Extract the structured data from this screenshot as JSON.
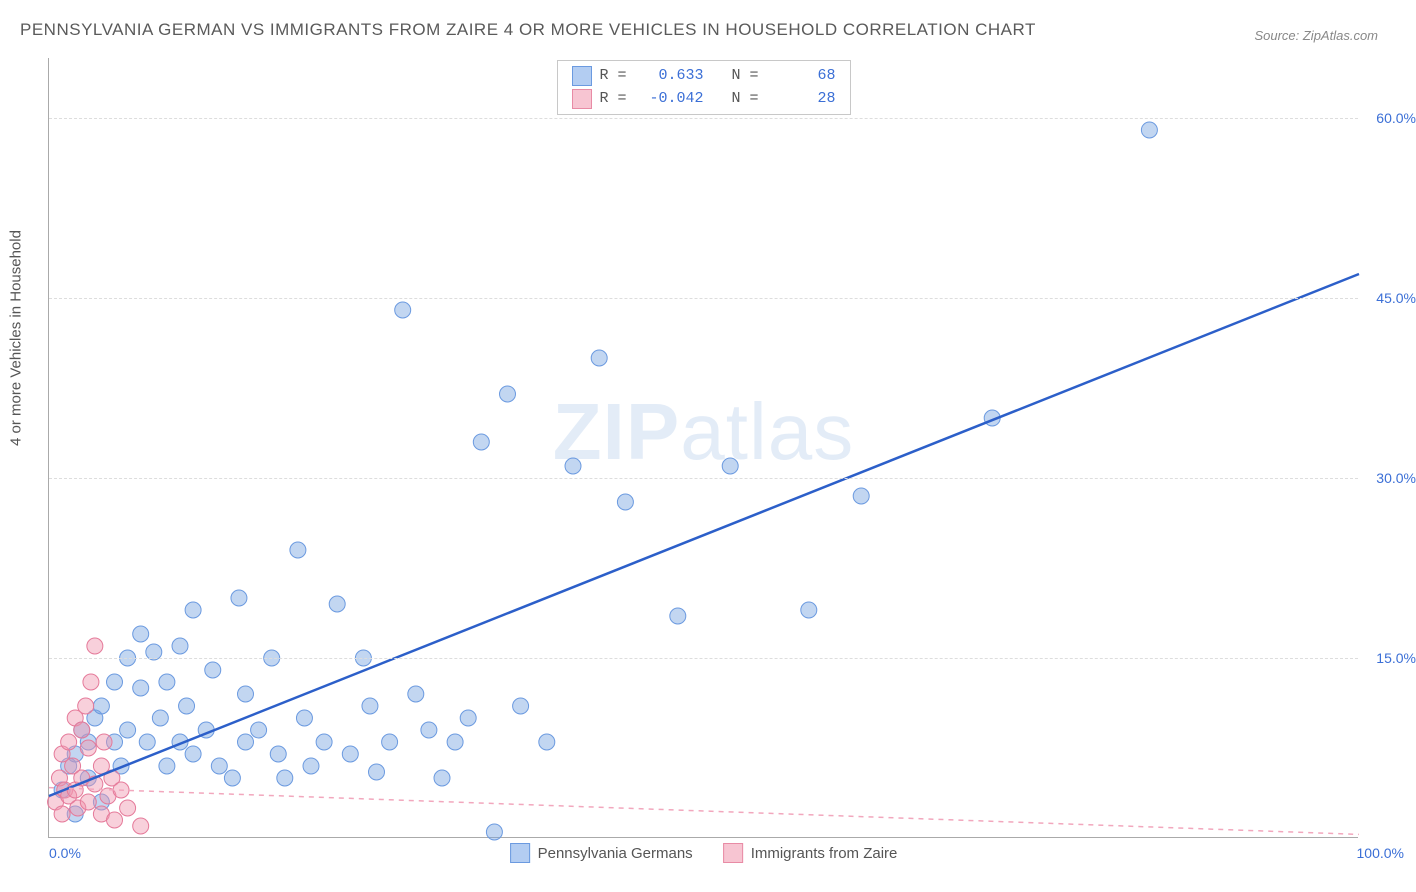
{
  "title": "PENNSYLVANIA GERMAN VS IMMIGRANTS FROM ZAIRE 4 OR MORE VEHICLES IN HOUSEHOLD CORRELATION CHART",
  "source": "Source: ZipAtlas.com",
  "watermark_zip": "ZIP",
  "watermark_atlas": "atlas",
  "ylabel": "4 or more Vehicles in Household",
  "chart": {
    "type": "scatter",
    "xlim": [
      0,
      100
    ],
    "ylim": [
      0,
      65
    ],
    "yticks": [
      15,
      30,
      45,
      60
    ],
    "ytick_labels": [
      "15.0%",
      "30.0%",
      "45.0%",
      "60.0%"
    ],
    "xtick_left": "0.0%",
    "xtick_right": "100.0%",
    "grid_color": "#dddddd",
    "background_color": "#ffffff",
    "marker_radius": 8,
    "series": [
      {
        "name": "Pennsylvania Germans",
        "color_fill": "rgba(120,165,225,0.45)",
        "color_stroke": "#6b9ae0",
        "R": "0.633",
        "N": "68",
        "trend": {
          "x1": 0,
          "y1": 3.5,
          "x2": 100,
          "y2": 47.0,
          "color": "#2c5fc9",
          "width": 2.5
        },
        "points": [
          [
            1,
            4
          ],
          [
            1.5,
            6
          ],
          [
            2,
            2
          ],
          [
            2,
            7
          ],
          [
            2.5,
            9
          ],
          [
            3,
            5
          ],
          [
            3,
            8
          ],
          [
            3.5,
            10
          ],
          [
            4,
            3
          ],
          [
            4,
            11
          ],
          [
            5,
            8
          ],
          [
            5,
            13
          ],
          [
            5.5,
            6
          ],
          [
            6,
            9
          ],
          [
            6,
            15
          ],
          [
            7,
            17
          ],
          [
            7,
            12.5
          ],
          [
            7.5,
            8
          ],
          [
            8,
            15.5
          ],
          [
            8.5,
            10
          ],
          [
            9,
            6
          ],
          [
            9,
            13
          ],
          [
            10,
            16
          ],
          [
            10,
            8
          ],
          [
            10.5,
            11
          ],
          [
            11,
            19
          ],
          [
            11,
            7
          ],
          [
            12,
            9
          ],
          [
            12.5,
            14
          ],
          [
            13,
            6
          ],
          [
            14,
            5
          ],
          [
            14.5,
            20
          ],
          [
            15,
            8
          ],
          [
            15,
            12
          ],
          [
            16,
            9
          ],
          [
            17,
            15
          ],
          [
            17.5,
            7
          ],
          [
            18,
            5
          ],
          [
            19,
            24
          ],
          [
            19.5,
            10
          ],
          [
            20,
            6
          ],
          [
            21,
            8
          ],
          [
            22,
            19.5
          ],
          [
            23,
            7
          ],
          [
            24,
            15
          ],
          [
            24.5,
            11
          ],
          [
            25,
            5.5
          ],
          [
            26,
            8
          ],
          [
            27,
            44
          ],
          [
            28,
            12
          ],
          [
            29,
            9
          ],
          [
            30,
            5
          ],
          [
            31,
            8
          ],
          [
            32,
            10
          ],
          [
            33,
            33
          ],
          [
            34,
            0.5
          ],
          [
            35,
            37
          ],
          [
            36,
            11
          ],
          [
            38,
            8
          ],
          [
            40,
            31
          ],
          [
            42,
            40
          ],
          [
            44,
            28
          ],
          [
            48,
            18.5
          ],
          [
            52,
            31
          ],
          [
            58,
            19
          ],
          [
            62,
            28.5
          ],
          [
            84,
            59
          ],
          [
            72,
            35
          ]
        ]
      },
      {
        "name": "Immigrants from Zaire",
        "color_fill": "rgba(240,150,175,0.45)",
        "color_stroke": "#e57a9a",
        "R": "-0.042",
        "N": "28",
        "trend": {
          "x1": 0,
          "y1": 4.2,
          "x2": 100,
          "y2": 0.3,
          "color": "#f2a7bd",
          "width": 1.5,
          "dash": "5 5"
        },
        "points": [
          [
            0.5,
            3
          ],
          [
            0.8,
            5
          ],
          [
            1,
            2
          ],
          [
            1,
            7
          ],
          [
            1.2,
            4
          ],
          [
            1.5,
            8
          ],
          [
            1.5,
            3.5
          ],
          [
            1.8,
            6
          ],
          [
            2,
            10
          ],
          [
            2,
            4
          ],
          [
            2.2,
            2.5
          ],
          [
            2.5,
            9
          ],
          [
            2.5,
            5
          ],
          [
            2.8,
            11
          ],
          [
            3,
            3
          ],
          [
            3,
            7.5
          ],
          [
            3.2,
            13
          ],
          [
            3.5,
            4.5
          ],
          [
            3.5,
            16
          ],
          [
            4,
            2
          ],
          [
            4,
            6
          ],
          [
            4.2,
            8
          ],
          [
            4.5,
            3.5
          ],
          [
            4.8,
            5
          ],
          [
            5,
            1.5
          ],
          [
            5.5,
            4
          ],
          [
            6,
            2.5
          ],
          [
            7,
            1
          ]
        ]
      }
    ]
  },
  "legend": {
    "series1_label": "Pennsylvania Germans",
    "series2_label": "Immigrants from Zaire"
  },
  "stats_box": {
    "r_label": "R =",
    "n_label": "N ="
  }
}
